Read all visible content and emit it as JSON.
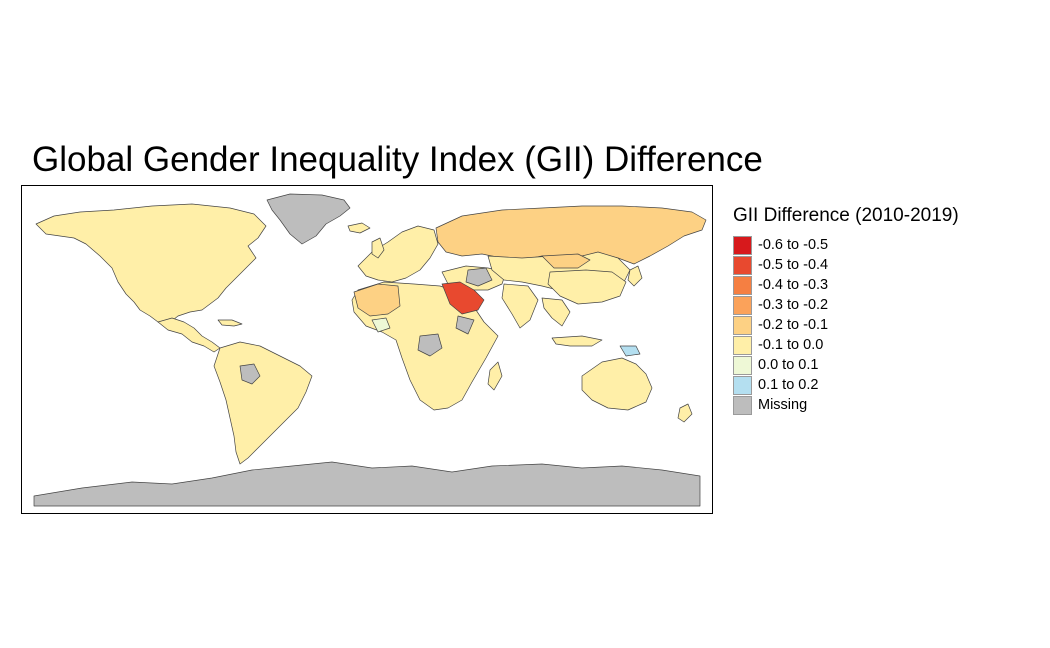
{
  "title": "Global Gender Inequality Index (GII) Difference",
  "legend": {
    "title": "GII Difference (2010-2019)",
    "items": [
      {
        "label": "-0.6 to -0.5",
        "color": "#d7191c"
      },
      {
        "label": "-0.5 to -0.4",
        "color": "#e8492f"
      },
      {
        "label": "-0.4 to -0.3",
        "color": "#f57f42"
      },
      {
        "label": "-0.3 to -0.2",
        "color": "#fba25a"
      },
      {
        "label": "-0.2 to -0.1",
        "color": "#fdd184"
      },
      {
        "label": "-0.1 to 0.0",
        "color": "#ffefa8"
      },
      {
        "label": "0.0 to 0.1",
        "color": "#eef8d6"
      },
      {
        "label": "0.1 to 0.2",
        "color": "#b4dff0"
      },
      {
        "label": "Missing",
        "color": "#bdbdbd"
      }
    ]
  },
  "regions": [
    {
      "name": "Russia",
      "class": "-0.2 to -0.1"
    },
    {
      "name": "Saudi Arabia",
      "class": "-0.5 to -0.4"
    },
    {
      "name": "Northwest Africa",
      "class": "-0.2 to -0.1"
    },
    {
      "name": "Greenland",
      "class": "Missing"
    },
    {
      "name": "Antarctica",
      "class": "Missing"
    },
    {
      "name": "Papua New Guinea",
      "class": "0.1 to 0.2"
    }
  ]
}
